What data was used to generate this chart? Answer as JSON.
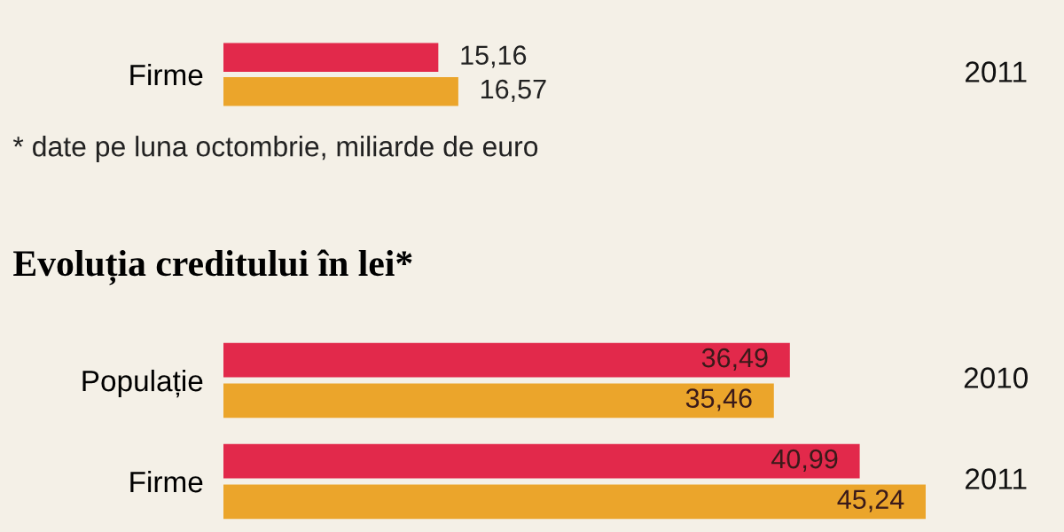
{
  "chart_data": [
    {
      "type": "bar",
      "orientation": "horizontal",
      "categories": [
        "Firme"
      ],
      "series": [
        {
          "color": "#e2294b",
          "values": [
            15.16
          ],
          "value_labels": [
            "15,16"
          ]
        },
        {
          "name": "2011",
          "color": "#eba52b",
          "values": [
            16.57
          ],
          "value_labels": [
            "16,57"
          ]
        }
      ],
      "tick_labels": "y",
      "legend": "right",
      "annotations": [
        "* date pe luna octombrie, miliarde de euro"
      ]
    },
    {
      "type": "bar",
      "orientation": "horizontal",
      "title": "Evoluția creditului în lei*",
      "categories": [
        "Populație",
        "Firme"
      ],
      "series": [
        {
          "name": "2010",
          "color": "#e2294b",
          "values": [
            36.49,
            40.99
          ],
          "value_labels": [
            "36,49",
            "40,99"
          ]
        },
        {
          "name": "2011",
          "color": "#eba52b",
          "values": [
            35.46,
            45.24
          ],
          "value_labels": [
            "35,46",
            "45,24"
          ]
        }
      ],
      "tick_labels": "y",
      "legend": "right"
    }
  ]
}
